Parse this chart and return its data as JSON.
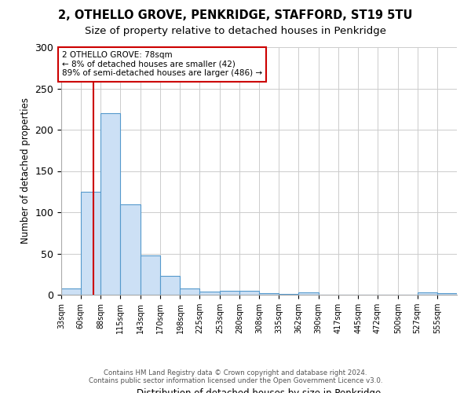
{
  "title_line1": "2, OTHELLO GROVE, PENKRIDGE, STAFFORD, ST19 5TU",
  "title_line2": "Size of property relative to detached houses in Penkridge",
  "xlabel": "Distribution of detached houses by size in Penkridge",
  "ylabel": "Number of detached properties",
  "footer_line1": "Contains HM Land Registry data © Crown copyright and database right 2024.",
  "footer_line2": "Contains public sector information licensed under the Open Government Licence v3.0.",
  "annotation_line1": "2 OTHELLO GROVE: 78sqm",
  "annotation_line2": "← 8% of detached houses are smaller (42)",
  "annotation_line3": "89% of semi-detached houses are larger (486) →",
  "property_size": 78,
  "bin_edges": [
    33,
    60,
    88,
    115,
    143,
    170,
    198,
    225,
    253,
    280,
    308,
    335,
    362,
    390,
    417,
    445,
    472,
    500,
    527,
    555,
    582
  ],
  "bar_heights": [
    8,
    125,
    220,
    110,
    48,
    23,
    8,
    4,
    5,
    5,
    2,
    1,
    3,
    0,
    0,
    0,
    0,
    0,
    3,
    2
  ],
  "bar_color": "#cce0f5",
  "bar_edge_color": "#5599cc",
  "vline_color": "#cc0000",
  "annotation_box_color": "#cc0000",
  "background_color": "#ffffff",
  "grid_color": "#cccccc",
  "ylim": [
    0,
    300
  ],
  "yticks": [
    0,
    50,
    100,
    150,
    200,
    250,
    300
  ]
}
